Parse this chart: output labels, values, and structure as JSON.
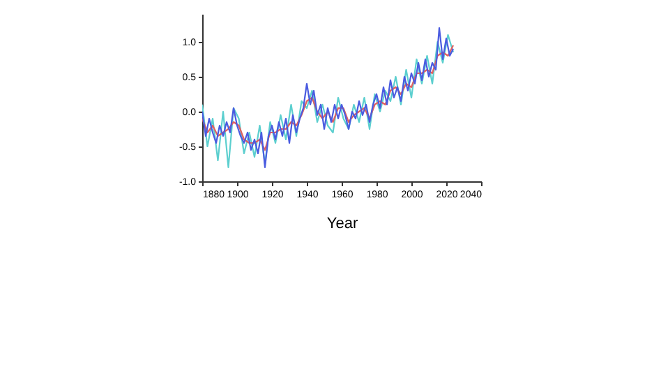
{
  "chart_data": {
    "type": "line",
    "xlabel": "Year",
    "xlim": [
      1880,
      2040
    ],
    "xticks": [
      1880,
      1900,
      1920,
      1940,
      1960,
      1980,
      2000,
      2020,
      2040
    ],
    "ylim": [
      -1.0,
      1.4
    ],
    "yticks": [
      {
        "value": -1.0,
        "label": "-1.0"
      },
      {
        "value": -0.5,
        "label": "-0.5"
      },
      {
        "value": 0.0,
        "label": "0.0"
      },
      {
        "value": 0.5,
        "label": "0.5"
      },
      {
        "value": 1.0,
        "label": "1.0"
      }
    ],
    "grid": false,
    "marker": "none",
    "line_style": "solid",
    "series": [
      {
        "color": "#5ccfcf",
        "x": [
          1880,
          1883,
          1886,
          1889,
          1892,
          1895,
          1898,
          1901,
          1904,
          1907,
          1910,
          1913,
          1916,
          1919,
          1922,
          1925,
          1928,
          1931,
          1934,
          1937,
          1940,
          1943,
          1946,
          1949,
          1952,
          1955,
          1958,
          1961,
          1964,
          1967,
          1970,
          1973,
          1976,
          1979,
          1982,
          1985,
          1988,
          1991,
          1994,
          1997,
          2000,
          2003,
          2006,
          2009,
          2012,
          2015,
          2018,
          2021,
          2024
        ],
        "values": [
          0.1,
          -0.5,
          -0.1,
          -0.7,
          0.0,
          -0.8,
          0.05,
          -0.1,
          -0.6,
          -0.3,
          -0.65,
          -0.2,
          -0.75,
          -0.15,
          -0.45,
          -0.05,
          -0.4,
          0.1,
          -0.35,
          0.15,
          0.05,
          0.3,
          -0.15,
          0.1,
          -0.2,
          -0.3,
          0.2,
          -0.1,
          -0.25,
          0.1,
          -0.15,
          0.2,
          -0.25,
          0.25,
          0.0,
          0.3,
          0.15,
          0.5,
          0.1,
          0.6,
          0.2,
          0.75,
          0.4,
          0.8,
          0.4,
          1.0,
          0.7,
          1.1,
          0.85
        ]
      },
      {
        "color": "#e06060",
        "x": [
          1880,
          1883,
          1886,
          1889,
          1892,
          1895,
          1898,
          1901,
          1904,
          1907,
          1910,
          1913,
          1916,
          1919,
          1922,
          1925,
          1928,
          1931,
          1934,
          1937,
          1940,
          1943,
          1946,
          1949,
          1952,
          1955,
          1958,
          1961,
          1964,
          1967,
          1970,
          1973,
          1976,
          1979,
          1982,
          1985,
          1988,
          1991,
          1994,
          1997,
          2000,
          2003,
          2006,
          2009,
          2012,
          2015,
          2018,
          2021,
          2024
        ],
        "values": [
          -0.1,
          -0.3,
          -0.2,
          -0.35,
          -0.3,
          -0.25,
          -0.15,
          -0.2,
          -0.4,
          -0.45,
          -0.45,
          -0.4,
          -0.55,
          -0.3,
          -0.3,
          -0.25,
          -0.25,
          -0.15,
          -0.2,
          -0.05,
          0.15,
          0.2,
          0.0,
          -0.1,
          0.0,
          -0.15,
          0.05,
          0.05,
          -0.15,
          -0.05,
          0.0,
          0.05,
          -0.1,
          0.1,
          0.15,
          0.1,
          0.3,
          0.35,
          0.25,
          0.4,
          0.35,
          0.55,
          0.55,
          0.6,
          0.55,
          0.8,
          0.85,
          0.8,
          0.95
        ]
      },
      {
        "color": "#4a5be0",
        "x": [
          1880,
          1882,
          1884,
          1886,
          1888,
          1890,
          1892,
          1894,
          1896,
          1898,
          1900,
          1902,
          1904,
          1906,
          1908,
          1910,
          1912,
          1914,
          1916,
          1918,
          1920,
          1922,
          1924,
          1926,
          1928,
          1930,
          1932,
          1934,
          1936,
          1938,
          1940,
          1942,
          1944,
          1946,
          1948,
          1950,
          1952,
          1954,
          1956,
          1958,
          1960,
          1962,
          1964,
          1966,
          1968,
          1970,
          1972,
          1974,
          1976,
          1978,
          1980,
          1982,
          1984,
          1986,
          1988,
          1990,
          1992,
          1994,
          1996,
          1998,
          2000,
          2002,
          2004,
          2006,
          2008,
          2010,
          2012,
          2014,
          2016,
          2018,
          2020,
          2022,
          2024
        ],
        "values": [
          0.0,
          -0.35,
          -0.1,
          -0.3,
          -0.45,
          -0.2,
          -0.35,
          -0.15,
          -0.3,
          0.05,
          -0.2,
          -0.35,
          -0.45,
          -0.3,
          -0.55,
          -0.4,
          -0.6,
          -0.3,
          -0.8,
          -0.35,
          -0.2,
          -0.4,
          -0.15,
          -0.35,
          -0.1,
          -0.45,
          -0.05,
          -0.3,
          -0.1,
          0.05,
          0.4,
          0.1,
          0.3,
          -0.05,
          0.1,
          -0.25,
          0.05,
          -0.15,
          0.1,
          -0.1,
          0.1,
          -0.05,
          -0.25,
          0.0,
          -0.1,
          0.15,
          -0.05,
          0.1,
          -0.15,
          0.1,
          0.25,
          0.05,
          0.35,
          0.1,
          0.45,
          0.2,
          0.35,
          0.15,
          0.5,
          0.3,
          0.55,
          0.4,
          0.7,
          0.45,
          0.75,
          0.5,
          0.7,
          0.6,
          1.2,
          0.75,
          1.05,
          0.8,
          0.9
        ]
      }
    ]
  }
}
